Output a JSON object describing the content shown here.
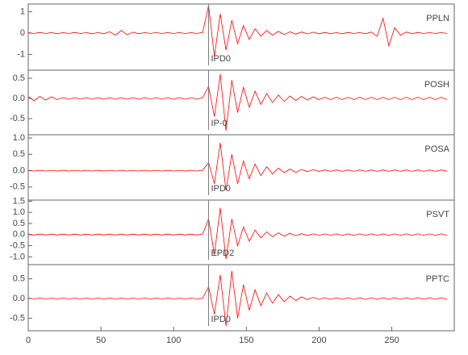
{
  "chart_data": [
    {
      "type": "line",
      "name": "PPLN",
      "color": "#ff0000",
      "xlim": [
        0,
        293
      ],
      "ylim": [
        -1.74,
        1.36
      ],
      "yticks": [
        -1,
        0,
        1
      ],
      "pick": {
        "x": 124,
        "label": "IPD0"
      },
      "x": [
        0,
        4,
        8,
        12,
        16,
        20,
        24,
        28,
        32,
        36,
        40,
        44,
        48,
        52,
        56,
        60,
        64,
        68,
        72,
        76,
        80,
        84,
        88,
        92,
        96,
        100,
        104,
        108,
        112,
        116,
        120,
        124,
        128,
        132,
        136,
        140,
        144,
        148,
        152,
        156,
        160,
        164,
        168,
        172,
        176,
        180,
        184,
        188,
        192,
        196,
        200,
        204,
        208,
        212,
        216,
        220,
        224,
        228,
        232,
        236,
        240,
        244,
        248,
        252,
        256,
        260,
        264,
        268,
        272,
        276,
        280,
        284,
        288
      ],
      "values": [
        0.02,
        -0.02,
        0.03,
        -0.02,
        0.02,
        -0.03,
        0.02,
        -0.02,
        0.03,
        -0.02,
        0.02,
        -0.03,
        0.02,
        -0.03,
        0.06,
        -0.1,
        0.12,
        -0.08,
        0.04,
        -0.03,
        0.02,
        -0.02,
        0.02,
        -0.02,
        0.02,
        -0.02,
        0.02,
        -0.02,
        0.02,
        -0.02,
        0.03,
        1.3,
        -1.1,
        0.9,
        -0.8,
        0.6,
        -0.5,
        0.35,
        -0.3,
        0.2,
        -0.15,
        0.12,
        -0.1,
        0.08,
        -0.07,
        0.06,
        -0.05,
        0.05,
        -0.04,
        0.04,
        -0.03,
        0.03,
        -0.03,
        0.02,
        -0.03,
        0.03,
        -0.02,
        0.02,
        -0.03,
        0.05,
        -0.15,
        0.7,
        -0.6,
        0.25,
        -0.1,
        0.05,
        -0.03,
        0.03,
        -0.02,
        0.02,
        -0.02,
        0.02,
        -0.02
      ]
    },
    {
      "type": "line",
      "name": "POSH",
      "color": "#ff0000",
      "xlim": [
        0,
        293
      ],
      "ylim": [
        -0.9,
        0.7
      ],
      "yticks": [
        -0.5,
        {
          "value": 0,
          "label": "0.0"
        },
        0.5
      ],
      "pick": {
        "x": 124,
        "label": "IP-0"
      },
      "x": [
        0,
        4,
        8,
        12,
        16,
        20,
        24,
        28,
        32,
        36,
        40,
        44,
        48,
        52,
        56,
        60,
        64,
        68,
        72,
        76,
        80,
        84,
        88,
        92,
        96,
        100,
        104,
        108,
        112,
        116,
        120,
        124,
        128,
        132,
        136,
        140,
        144,
        148,
        152,
        156,
        160,
        164,
        168,
        172,
        176,
        180,
        184,
        188,
        192,
        196,
        200,
        204,
        208,
        212,
        216,
        220,
        224,
        228,
        232,
        236,
        240,
        244,
        248,
        252,
        256,
        260,
        264,
        268,
        272,
        276,
        280,
        284,
        288
      ],
      "values": [
        0.05,
        -0.06,
        0.05,
        -0.04,
        0.04,
        -0.03,
        0.02,
        -0.02,
        0.02,
        -0.02,
        0.02,
        -0.02,
        0.02,
        -0.02,
        0.02,
        -0.02,
        0.02,
        -0.02,
        0.02,
        -0.02,
        0.02,
        -0.02,
        0.02,
        -0.02,
        0.02,
        -0.02,
        0.02,
        -0.02,
        0.02,
        -0.02,
        0.02,
        0.3,
        -0.45,
        0.6,
        -0.8,
        0.45,
        -0.35,
        0.28,
        -0.22,
        0.18,
        -0.15,
        0.12,
        -0.1,
        0.08,
        -0.07,
        0.06,
        -0.05,
        0.05,
        -0.04,
        0.04,
        -0.03,
        0.03,
        -0.03,
        0.03,
        -0.03,
        0.03,
        -0.03,
        0.03,
        -0.03,
        0.03,
        -0.03,
        0.03,
        -0.03,
        0.03,
        -0.03,
        0.03,
        -0.03,
        0.03,
        -0.03,
        0.03,
        -0.03,
        0.03,
        -0.03
      ]
    },
    {
      "type": "line",
      "name": "POSA",
      "color": "#ff0000",
      "xlim": [
        0,
        293
      ],
      "ylim": [
        -0.9,
        1.1
      ],
      "yticks": [
        -0.5,
        {
          "value": 0,
          "label": "0.0"
        },
        0.5,
        {
          "value": 1,
          "label": "1.0"
        }
      ],
      "pick": {
        "x": 124,
        "label": "IPD0"
      },
      "x": [
        0,
        4,
        8,
        12,
        16,
        20,
        24,
        28,
        32,
        36,
        40,
        44,
        48,
        52,
        56,
        60,
        64,
        68,
        72,
        76,
        80,
        84,
        88,
        92,
        96,
        100,
        104,
        108,
        112,
        116,
        120,
        124,
        128,
        132,
        136,
        140,
        144,
        148,
        152,
        156,
        160,
        164,
        168,
        172,
        176,
        180,
        184,
        188,
        192,
        196,
        200,
        204,
        208,
        212,
        216,
        220,
        224,
        228,
        232,
        236,
        240,
        244,
        248,
        252,
        256,
        260,
        264,
        268,
        272,
        276,
        280,
        284,
        288
      ],
      "values": [
        0.01,
        -0.01,
        0.01,
        -0.01,
        0.01,
        -0.01,
        0.01,
        -0.01,
        0.01,
        -0.01,
        0.01,
        -0.01,
        0.01,
        -0.01,
        0.01,
        -0.01,
        0.01,
        -0.01,
        0.01,
        -0.01,
        0.01,
        -0.01,
        0.01,
        -0.01,
        0.01,
        -0.01,
        0.01,
        -0.01,
        0.01,
        -0.01,
        0.01,
        0.25,
        -0.4,
        0.85,
        -0.6,
        0.5,
        -0.4,
        0.3,
        -0.25,
        0.2,
        -0.15,
        0.12,
        -0.1,
        0.08,
        -0.06,
        0.05,
        -0.05,
        0.04,
        -0.03,
        0.03,
        -0.02,
        0.02,
        -0.02,
        0.02,
        -0.02,
        0.02,
        -0.02,
        0.02,
        -0.02,
        0.02,
        -0.02,
        0.02,
        -0.02,
        0.02,
        -0.02,
        0.02,
        -0.02,
        0.02,
        -0.02,
        0.02,
        -0.02,
        0.02,
        -0.02
      ]
    },
    {
      "type": "line",
      "name": "PSVT",
      "color": "#ff0000",
      "xlim": [
        0,
        293
      ],
      "ylim": [
        -1.35,
        1.55
      ],
      "yticks": [
        {
          "value": -1,
          "label": "-1.0"
        },
        -0.5,
        {
          "value": 0,
          "label": "0.0"
        },
        0.5,
        {
          "value": 1,
          "label": "1.0"
        },
        1.5
      ],
      "pick": {
        "x": 124,
        "label": "EPD2"
      },
      "x": [
        0,
        4,
        8,
        12,
        16,
        20,
        24,
        28,
        32,
        36,
        40,
        44,
        48,
        52,
        56,
        60,
        64,
        68,
        72,
        76,
        80,
        84,
        88,
        92,
        96,
        100,
        104,
        108,
        112,
        116,
        120,
        124,
        128,
        132,
        136,
        140,
        144,
        148,
        152,
        156,
        160,
        164,
        168,
        172,
        176,
        180,
        184,
        188,
        192,
        196,
        200,
        204,
        208,
        212,
        216,
        220,
        224,
        228,
        232,
        236,
        240,
        244,
        248,
        252,
        256,
        260,
        264,
        268,
        272,
        276,
        280,
        284,
        288
      ],
      "values": [
        0.02,
        -0.02,
        0.02,
        -0.02,
        0.02,
        -0.02,
        0.02,
        -0.02,
        0.02,
        -0.02,
        0.02,
        -0.02,
        0.02,
        -0.02,
        0.02,
        -0.02,
        0.02,
        -0.02,
        0.02,
        -0.02,
        0.02,
        -0.02,
        0.02,
        -0.02,
        0.02,
        -0.02,
        0.02,
        -0.02,
        0.02,
        -0.02,
        0.02,
        0.7,
        -0.9,
        1.2,
        -1.1,
        0.7,
        -0.5,
        0.35,
        -0.3,
        0.2,
        -0.15,
        0.12,
        -0.1,
        0.08,
        -0.07,
        0.06,
        -0.05,
        0.04,
        -0.04,
        0.03,
        -0.03,
        0.03,
        -0.03,
        0.03,
        -0.03,
        0.03,
        -0.03,
        0.03,
        -0.03,
        0.03,
        -0.03,
        0.03,
        -0.03,
        0.03,
        -0.03,
        0.03,
        -0.03,
        0.03,
        -0.03,
        0.03,
        -0.03,
        0.03,
        -0.03
      ]
    },
    {
      "type": "line",
      "name": "PPTC",
      "color": "#ff0000",
      "xlim": [
        0,
        293
      ],
      "ylim": [
        -0.82,
        0.86
      ],
      "yticks": [
        -0.5,
        {
          "value": 0,
          "label": "0.0"
        },
        0.5
      ],
      "xticks": [
        0,
        50,
        100,
        150,
        200,
        250
      ],
      "pick": {
        "x": 124,
        "label": "IPD0"
      },
      "x": [
        0,
        4,
        8,
        12,
        16,
        20,
        24,
        28,
        32,
        36,
        40,
        44,
        48,
        52,
        56,
        60,
        64,
        68,
        72,
        76,
        80,
        84,
        88,
        92,
        96,
        100,
        104,
        108,
        112,
        116,
        120,
        124,
        128,
        132,
        136,
        140,
        144,
        148,
        152,
        156,
        160,
        164,
        168,
        172,
        176,
        180,
        184,
        188,
        192,
        196,
        200,
        204,
        208,
        212,
        216,
        220,
        224,
        228,
        232,
        236,
        240,
        244,
        248,
        252,
        256,
        260,
        264,
        268,
        272,
        276,
        280,
        284,
        288
      ],
      "values": [
        0.01,
        -0.01,
        0.01,
        -0.01,
        0.01,
        -0.01,
        0.01,
        -0.01,
        0.01,
        -0.01,
        0.01,
        -0.01,
        0.01,
        -0.01,
        0.01,
        -0.01,
        0.01,
        -0.01,
        0.01,
        -0.01,
        0.01,
        -0.01,
        0.01,
        -0.01,
        0.01,
        -0.01,
        0.01,
        -0.01,
        0.01,
        -0.01,
        0.01,
        0.3,
        -0.4,
        0.6,
        -0.7,
        0.7,
        -0.5,
        0.35,
        -0.3,
        0.22,
        -0.18,
        0.14,
        -0.12,
        0.1,
        -0.08,
        0.06,
        -0.05,
        0.04,
        -0.03,
        0.03,
        -0.02,
        0.02,
        -0.02,
        0.02,
        -0.02,
        0.02,
        -0.02,
        0.02,
        -0.02,
        0.02,
        -0.02,
        0.02,
        -0.02,
        0.02,
        -0.02,
        0.02,
        -0.02,
        0.02,
        -0.02,
        0.02,
        -0.02,
        0.02,
        -0.02
      ]
    }
  ]
}
